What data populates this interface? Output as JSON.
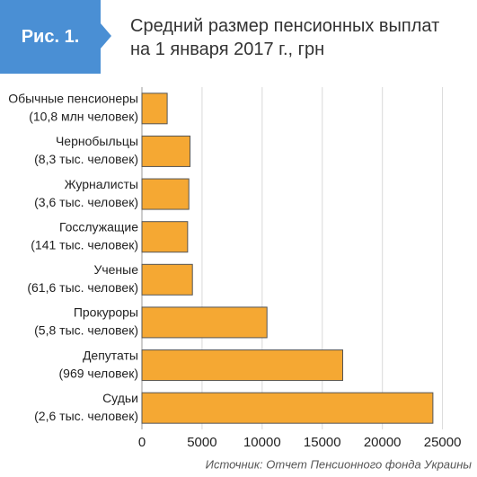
{
  "badge": "Рис. 1.",
  "chart_data": {
    "type": "bar",
    "orientation": "horizontal",
    "title": "Средний размер пенсионных выплат на 1 января 2017 г., грн",
    "categories": [
      [
        "Обычные пенсионеры",
        "(10,8 млн человек)"
      ],
      [
        "Чернобыльцы",
        "(8,3 тыс. человек)"
      ],
      [
        "Журналисты",
        "(3,6 тыс. человек)"
      ],
      [
        "Госслужащие",
        "(141 тыс. человек)"
      ],
      [
        "Ученые",
        "(61,6 тыс. человек)"
      ],
      [
        "Прокуроры",
        "(5,8 тыс. человек)"
      ],
      [
        "Депутаты",
        "(969 человек)"
      ],
      [
        "Судьи",
        "(2,6 тыс. человек)"
      ]
    ],
    "values": [
      2100,
      4000,
      3900,
      3800,
      4200,
      10400,
      16700,
      24200
    ],
    "color": "#f5a833",
    "xlim": [
      0,
      26300
    ],
    "xticks": [
      0,
      5000,
      10000,
      15000,
      20000,
      25000
    ],
    "grid": true,
    "source": "Источник: Отчет Пенсионного фонда Украины"
  }
}
